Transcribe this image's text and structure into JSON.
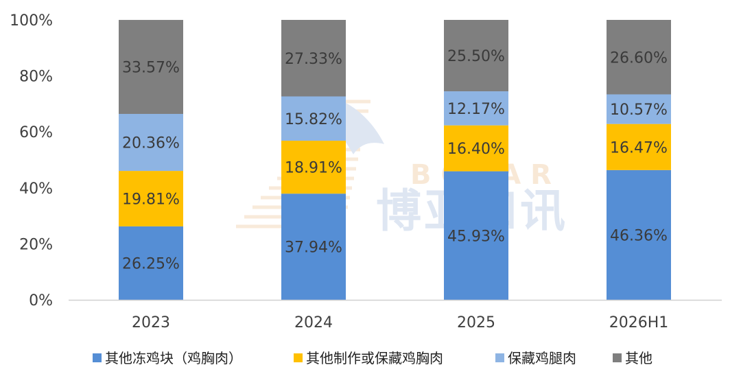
{
  "chart_data": {
    "type": "bar",
    "stacked": true,
    "percent_stacked": true,
    "categories": [
      "2023",
      "2024",
      "2025",
      "2026H1"
    ],
    "series": [
      {
        "name": "其他冻鸡块（鸡胸肉）",
        "color": "#558ed5",
        "values": [
          26.25,
          37.94,
          45.93,
          46.36
        ],
        "labels": [
          "26.25%",
          "37.94%",
          "45.93%",
          "46.36%"
        ]
      },
      {
        "name": "其他制作或保藏鸡胸肉",
        "color": "#ffc000",
        "values": [
          19.81,
          18.91,
          16.4,
          16.47
        ],
        "labels": [
          "19.81%",
          "18.91%",
          "16.40%",
          "16.47%"
        ]
      },
      {
        "name": "保藏鸡腿肉",
        "color": "#8eb4e3",
        "values": [
          20.36,
          15.82,
          12.17,
          10.57
        ],
        "labels": [
          "20.36%",
          "15.82%",
          "12.17%",
          "10.57%"
        ]
      },
      {
        "name": "其他",
        "color": "#7f7f7f",
        "values": [
          33.57,
          27.33,
          25.5,
          26.6
        ],
        "labels": [
          "33.57%",
          "27.33%",
          "25.50%",
          "26.60%"
        ]
      }
    ],
    "y_ticks": [
      "0%",
      "20%",
      "40%",
      "60%",
      "80%",
      "100%"
    ],
    "ylim": [
      0,
      100
    ],
    "title": "",
    "xlabel": "",
    "ylabel": "",
    "grid": false,
    "legend_position": "bottom"
  },
  "watermark": {
    "latin": "BOYAR",
    "cjk": "博亚和讯"
  }
}
